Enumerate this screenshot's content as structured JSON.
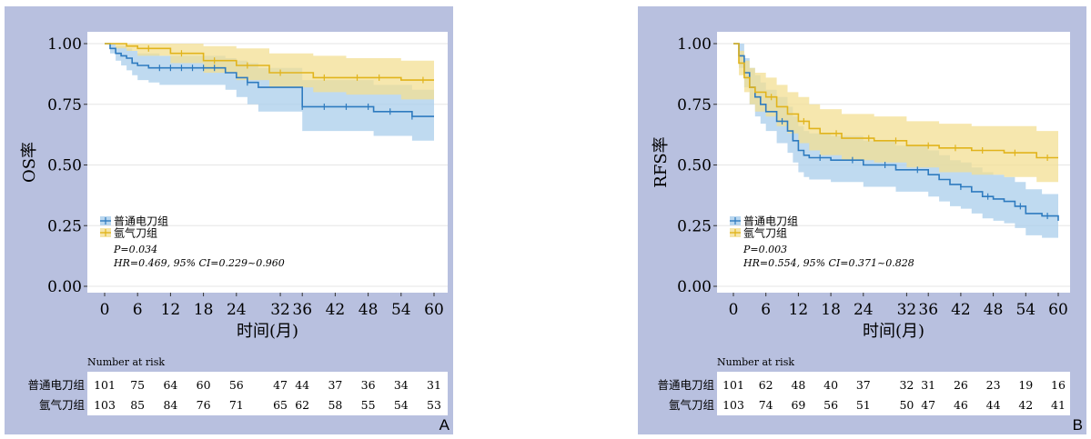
{
  "chart_data": [
    {
      "type": "line",
      "panel_letter": "A",
      "xlabel": "时间(月)",
      "ylabel": "OS率",
      "xticks": [
        0,
        6,
        12,
        18,
        24,
        32,
        36,
        42,
        48,
        54,
        60
      ],
      "yticks": [
        "0.00",
        "0.25",
        "0.50",
        "0.75",
        "1.00"
      ],
      "xlim": [
        0,
        60
      ],
      "ylim": [
        0,
        1
      ],
      "legend": {
        "position": "bottom-left",
        "items": [
          "普通电刀组",
          "氩气刀组"
        ]
      },
      "p_value": "P=0.034",
      "hr_text": "HR=0.469, 95% CI=0.229~0.960",
      "colors": {
        "blue": "#2e7bbf",
        "blue_band": "#a9cdeb",
        "yellow": "#e1b41c",
        "yellow_band": "#f3df93"
      },
      "series": [
        {
          "name": "普通电刀组",
          "step_x": [
            0,
            1,
            2,
            3,
            4,
            5,
            6,
            8,
            10,
            22,
            24,
            26,
            28,
            30,
            36,
            49,
            56,
            60
          ],
          "step_y": [
            1.0,
            0.98,
            0.96,
            0.95,
            0.94,
            0.92,
            0.91,
            0.9,
            0.9,
            0.88,
            0.86,
            0.84,
            0.82,
            0.82,
            0.74,
            0.72,
            0.7,
            0.7
          ],
          "lower": [
            1.0,
            0.96,
            0.93,
            0.91,
            0.89,
            0.87,
            0.85,
            0.84,
            0.83,
            0.81,
            0.78,
            0.75,
            0.72,
            0.72,
            0.64,
            0.62,
            0.6,
            0.6
          ],
          "upper": [
            1.0,
            1.0,
            0.99,
            0.99,
            0.98,
            0.97,
            0.96,
            0.96,
            0.95,
            0.94,
            0.93,
            0.92,
            0.9,
            0.9,
            0.85,
            0.83,
            0.81,
            0.81
          ],
          "censor_x": [
            10,
            12,
            14,
            16,
            18,
            20,
            26,
            36,
            40,
            44,
            48,
            52,
            56
          ],
          "risk": [
            "101",
            "75",
            "64",
            "60",
            "56",
            "47",
            "44",
            "37",
            "36",
            "34",
            "31"
          ]
        },
        {
          "name": "氩气刀组",
          "step_x": [
            0,
            2,
            4,
            6,
            12,
            18,
            24,
            30,
            38,
            44,
            54,
            60
          ],
          "step_y": [
            1.0,
            1.0,
            0.99,
            0.98,
            0.96,
            0.93,
            0.91,
            0.88,
            0.86,
            0.86,
            0.85,
            0.85
          ],
          "lower": [
            1.0,
            0.98,
            0.97,
            0.95,
            0.92,
            0.88,
            0.85,
            0.82,
            0.8,
            0.79,
            0.77,
            0.77
          ],
          "upper": [
            1.0,
            1.0,
            1.0,
            1.0,
            1.0,
            0.99,
            0.98,
            0.96,
            0.95,
            0.94,
            0.93,
            0.93
          ],
          "censor_x": [
            8,
            14,
            20,
            26,
            32,
            40,
            46,
            50,
            58
          ],
          "risk": [
            "103",
            "85",
            "84",
            "76",
            "71",
            "65",
            "62",
            "58",
            "55",
            "54",
            "53"
          ]
        }
      ],
      "risk_table": {
        "title": "Number at risk",
        "row_labels": [
          "普通电刀组",
          "氩气刀组"
        ]
      }
    },
    {
      "type": "line",
      "panel_letter": "B",
      "xlabel": "时间(月)",
      "ylabel": "RFS率",
      "xticks": [
        0,
        6,
        12,
        18,
        24,
        32,
        36,
        42,
        48,
        54,
        60
      ],
      "yticks": [
        "0.00",
        "0.25",
        "0.50",
        "0.75",
        "1.00"
      ],
      "xlim": [
        0,
        60
      ],
      "ylim": [
        0,
        1
      ],
      "legend": {
        "position": "bottom-left",
        "items": [
          "普通电刀组",
          "氩气刀组"
        ]
      },
      "p_value": "P=0.003",
      "hr_text": "HR=0.554, 95% CI=0.371~0.828",
      "colors": {
        "blue": "#2e7bbf",
        "blue_band": "#a9cdeb",
        "yellow": "#e1b41c",
        "yellow_band": "#f3df93"
      },
      "series": [
        {
          "name": "普通电刀组",
          "step_x": [
            0,
            1,
            2,
            3,
            4,
            5,
            6,
            8,
            10,
            11,
            12,
            13,
            14,
            18,
            24,
            30,
            36,
            38,
            40,
            42,
            44,
            46,
            48,
            50,
            52,
            54,
            57,
            60
          ],
          "step_y": [
            1.0,
            0.95,
            0.88,
            0.82,
            0.78,
            0.75,
            0.72,
            0.68,
            0.64,
            0.6,
            0.56,
            0.54,
            0.53,
            0.52,
            0.5,
            0.48,
            0.46,
            0.44,
            0.42,
            0.41,
            0.39,
            0.37,
            0.36,
            0.35,
            0.33,
            0.3,
            0.29,
            0.27
          ],
          "lower": [
            1.0,
            0.9,
            0.82,
            0.75,
            0.7,
            0.67,
            0.64,
            0.59,
            0.55,
            0.51,
            0.47,
            0.45,
            0.44,
            0.43,
            0.41,
            0.39,
            0.37,
            0.35,
            0.33,
            0.32,
            0.3,
            0.28,
            0.27,
            0.26,
            0.24,
            0.21,
            0.2,
            0.18
          ],
          "upper": [
            1.0,
            1.0,
            0.94,
            0.9,
            0.87,
            0.84,
            0.81,
            0.78,
            0.74,
            0.7,
            0.66,
            0.64,
            0.63,
            0.62,
            0.6,
            0.58,
            0.56,
            0.54,
            0.52,
            0.51,
            0.49,
            0.47,
            0.46,
            0.45,
            0.43,
            0.4,
            0.38,
            0.37
          ],
          "censor_x": [
            9,
            16,
            22,
            28,
            34,
            42,
            47,
            53,
            58
          ],
          "risk": [
            "101",
            "62",
            "48",
            "40",
            "37",
            "32",
            "31",
            "26",
            "23",
            "19",
            "16"
          ]
        },
        {
          "name": "氩气刀组",
          "step_x": [
            0,
            1,
            2,
            3,
            4,
            6,
            8,
            10,
            12,
            14,
            16,
            20,
            26,
            32,
            38,
            44,
            50,
            56,
            60
          ],
          "step_y": [
            1.0,
            0.92,
            0.86,
            0.82,
            0.8,
            0.78,
            0.74,
            0.71,
            0.68,
            0.65,
            0.63,
            0.61,
            0.6,
            0.58,
            0.57,
            0.56,
            0.55,
            0.53,
            0.53
          ],
          "lower": [
            1.0,
            0.87,
            0.8,
            0.75,
            0.72,
            0.7,
            0.66,
            0.63,
            0.59,
            0.56,
            0.54,
            0.52,
            0.51,
            0.49,
            0.47,
            0.46,
            0.45,
            0.43,
            0.43
          ],
          "upper": [
            1.0,
            0.97,
            0.93,
            0.9,
            0.88,
            0.86,
            0.83,
            0.8,
            0.78,
            0.75,
            0.73,
            0.71,
            0.7,
            0.68,
            0.67,
            0.66,
            0.66,
            0.64,
            0.64
          ],
          "censor_x": [
            7,
            13,
            19,
            25,
            30,
            36,
            41,
            46,
            52,
            58
          ],
          "risk": [
            "103",
            "74",
            "69",
            "56",
            "51",
            "50",
            "47",
            "46",
            "44",
            "42",
            "41"
          ]
        }
      ],
      "risk_table": {
        "title": "Number at risk",
        "row_labels": [
          "普通电刀组",
          "氩气刀组"
        ]
      }
    }
  ]
}
